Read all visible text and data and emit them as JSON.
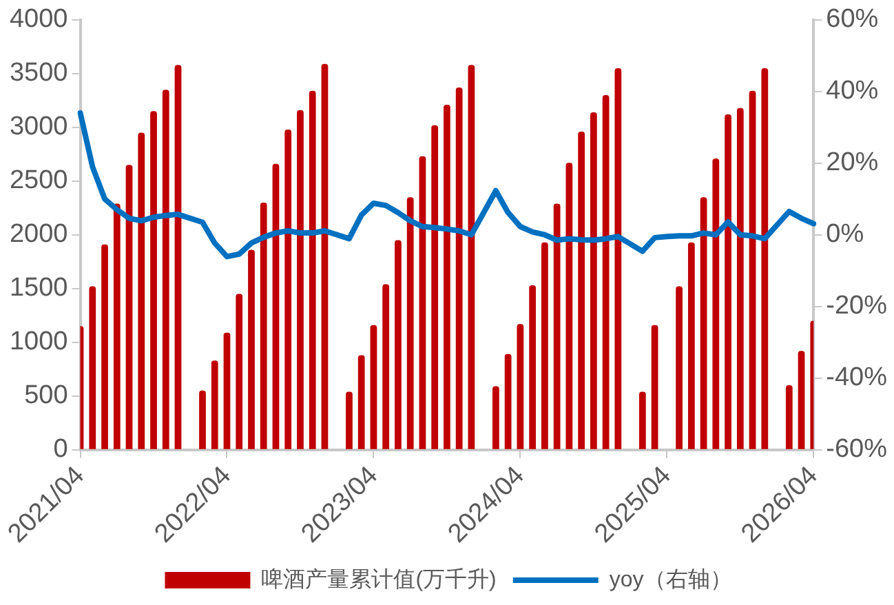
{
  "chart_data": {
    "type": "bar",
    "categories": [
      "2021/04",
      null,
      null,
      null,
      null,
      null,
      null,
      null,
      null,
      null,
      null,
      null,
      "2022/04",
      null,
      null,
      null,
      null,
      null,
      null,
      null,
      null,
      null,
      null,
      null,
      "2023/04",
      null,
      null,
      null,
      null,
      null,
      null,
      null,
      null,
      null,
      null,
      null,
      "2024/04",
      null,
      null,
      null,
      null,
      null,
      null,
      null,
      null,
      null,
      null,
      null,
      "2025/04",
      null,
      null,
      null,
      null,
      null,
      null,
      null,
      null,
      null,
      null,
      null,
      "2026/04"
    ],
    "series": [
      {
        "name": "啤酒产量累计值(万千升)",
        "color": "#c00000",
        "values": [
          1150,
          1520,
          1910,
          2290,
          2650,
          2950,
          3150,
          3350,
          3580,
          null,
          550,
          830,
          1090,
          1450,
          1860,
          2300,
          2660,
          2980,
          3160,
          3340,
          3590,
          null,
          540,
          880,
          1160,
          1540,
          1950,
          2350,
          2730,
          3020,
          3210,
          3370,
          3580,
          null,
          590,
          890,
          1170,
          1530,
          1930,
          2290,
          2670,
          2960,
          3140,
          3300,
          3550,
          null,
          540,
          1160,
          null,
          1520,
          1930,
          2350,
          2710,
          3120,
          3180,
          3340,
          3550,
          null,
          600,
          920,
          1200
        ]
      },
      {
        "type": "line",
        "name": "yoy（右轴）",
        "color": "#0070c0",
        "axis": "y2",
        "values": [
          34,
          19,
          10,
          7,
          4.6,
          3.9,
          4.9,
          5.4,
          5.7,
          null,
          3.5,
          -2.3,
          -6.1,
          -5.4,
          -2.3,
          -0.7,
          0.5,
          1.1,
          0.5,
          0.5,
          1.1,
          null,
          -1.1,
          5.5,
          8.8,
          8.2,
          6.2,
          3.9,
          2.3,
          2.0,
          1.6,
          1.1,
          0,
          null,
          12.3,
          6.2,
          2.3,
          0.8,
          0,
          -1.5,
          -1.1,
          -1.4,
          -1.5,
          -1.1,
          -0.5,
          null,
          -4.6,
          -0.8,
          -0.5,
          -0.3,
          -0.3,
          0.5,
          0,
          3.6,
          0,
          -0.3,
          -1.1,
          null,
          6.5,
          4.6,
          3.1
        ]
      }
    ],
    "ylim": [
      0,
      4000
    ],
    "yticks": [
      0,
      500,
      1000,
      1500,
      2000,
      2500,
      3000,
      3500,
      4000
    ],
    "y2lim": [
      -60,
      60
    ],
    "y2ticks": [
      {
        "value": -60,
        "label": "-60%"
      },
      {
        "value": -40,
        "label": "-40%"
      },
      {
        "value": -20,
        "label": "-20%"
      },
      {
        "value": 0,
        "label": "0%"
      },
      {
        "value": 20,
        "label": "20%"
      },
      {
        "value": 40,
        "label": "40%"
      },
      {
        "value": 60,
        "label": "60%"
      }
    ],
    "grid": false,
    "legend": "bottom",
    "marker": "none",
    "line_style": "solid"
  }
}
